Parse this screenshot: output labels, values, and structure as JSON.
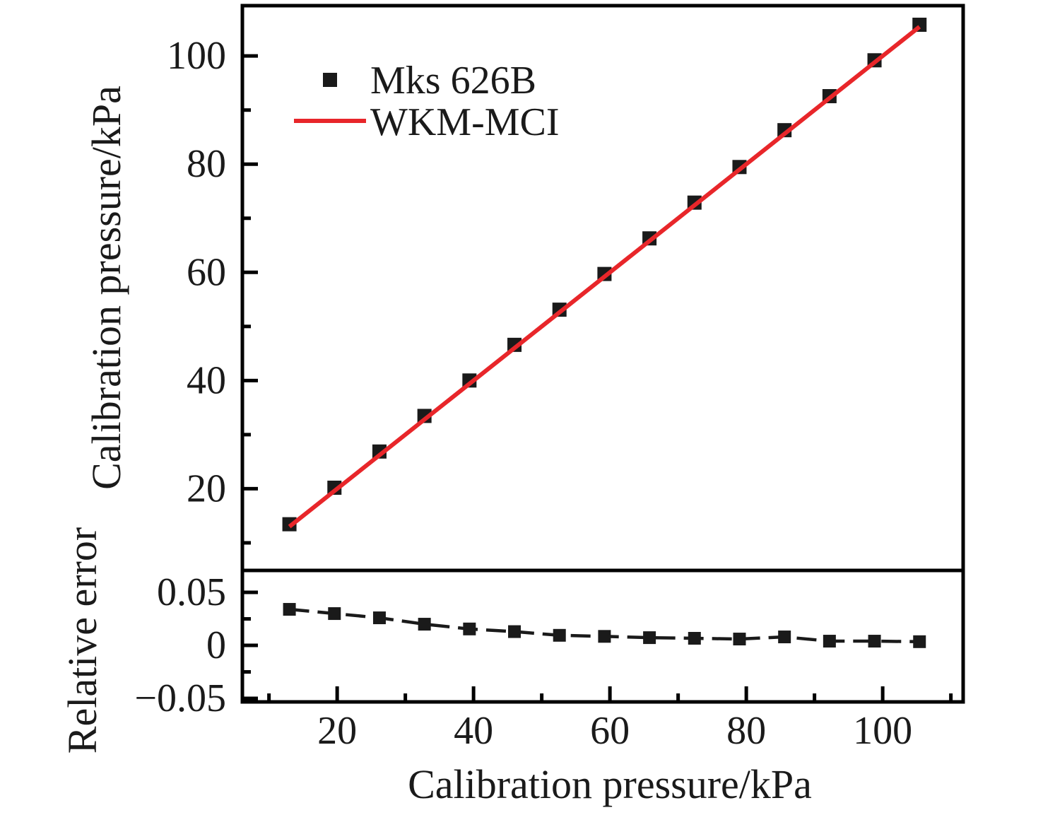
{
  "figure": {
    "background": "#ffffff",
    "frame_color": "#000000",
    "text_color": "#1a1a1a"
  },
  "chart_data": {
    "type": "line",
    "title": "",
    "xlabel": "Calibration pressure/kPa",
    "xlim": [
      6.1,
      111.8
    ],
    "xticks": [
      20,
      40,
      60,
      80,
      100
    ],
    "xtick_labels": [
      "20",
      "40",
      "60",
      "80",
      "100"
    ],
    "xminorticks": [
      10,
      30,
      50,
      70,
      90,
      110
    ],
    "grid": "off",
    "legend_position": "upper-left-inside",
    "panels": [
      {
        "name": "calibration-pressure-panel",
        "ylabel": "Calibration pressure/kPa",
        "ylim": [
          4.9,
          109.3
        ],
        "yticks": [
          20,
          40,
          60,
          80,
          100
        ],
        "ytick_labels": [
          "20",
          "40",
          "60",
          "80",
          "100"
        ],
        "yminorticks": [
          10,
          30,
          50,
          70,
          90
        ],
        "series": [
          {
            "name": "Mks 626B",
            "type": "scatter",
            "marker": "square",
            "color": "#1a1a1a",
            "x": [
              13.0,
              19.6,
              26.2,
              32.8,
              39.4,
              46.0,
              52.6,
              59.2,
              65.8,
              72.4,
              79.0,
              85.6,
              92.2,
              98.8,
              105.4
            ],
            "y": [
              13.44,
              20.19,
              26.88,
              33.46,
              40.01,
              46.6,
              53.1,
              59.7,
              66.28,
              72.89,
              79.47,
              86.28,
              92.57,
              99.2,
              105.77
            ]
          },
          {
            "name": "WKM-MCI",
            "type": "line",
            "color": "#e8262a",
            "x": [
              13.0,
              105.4
            ],
            "y": [
              13.0,
              105.4
            ]
          }
        ]
      },
      {
        "name": "relative-error-panel",
        "ylabel": "Relative error",
        "ylim": [
          -0.0533,
          0.0707
        ],
        "yticks": [
          0.05,
          0,
          -0.05
        ],
        "ytick_labels": [
          "0.05",
          "0",
          "−0.05"
        ],
        "yminorticks": [
          0.025,
          -0.025
        ],
        "series": [
          {
            "name": "relative error",
            "type": "line-scatter",
            "marker": "square",
            "linestyle": "dashed",
            "color": "#1a1a1a",
            "x": [
              13.0,
              19.6,
              26.2,
              32.8,
              39.4,
              46.0,
              52.6,
              59.2,
              65.8,
              72.4,
              79.0,
              85.6,
              92.2,
              98.8,
              105.4
            ],
            "y": [
              0.034,
              0.03,
              0.026,
              0.02,
              0.0155,
              0.013,
              0.0095,
              0.0085,
              0.0073,
              0.0067,
              0.006,
              0.008,
              0.004,
              0.004,
              0.0035
            ]
          }
        ]
      }
    ]
  }
}
